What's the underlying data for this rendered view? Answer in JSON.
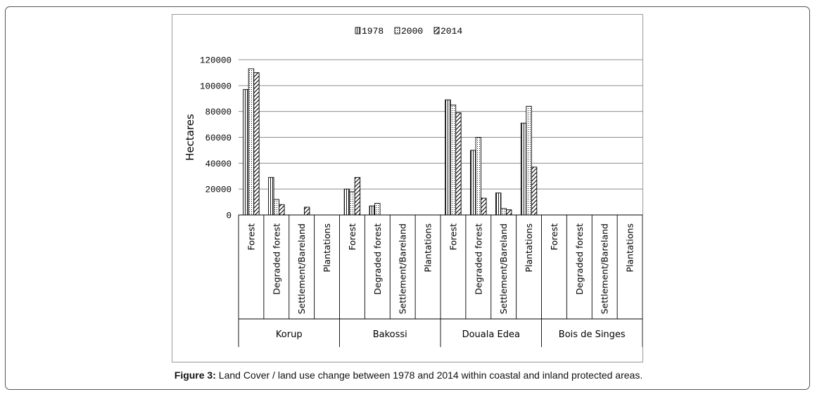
{
  "caption": {
    "label": "Figure 3:",
    "text": " Land Cover / land use change between 1978 and 2014 within coastal and inland protected areas."
  },
  "chart_data": {
    "type": "bar",
    "ylabel": "Hectares",
    "ylim": [
      0,
      120000
    ],
    "yticks": [
      "0",
      "20000",
      "40000",
      "60000",
      "80000",
      "100000",
      "120000"
    ],
    "grid": true,
    "legend_position": "top",
    "groups": [
      {
        "name": "Korup",
        "categories": [
          "Forest",
          "Degraded forest",
          "Settlement/Bareland",
          "Plantations"
        ]
      },
      {
        "name": "Bakossi",
        "categories": [
          "Forest",
          "Degraded forest",
          "Settlement/Bareland",
          "Plantations"
        ]
      },
      {
        "name": "Douala Edea",
        "categories": [
          "Forest",
          "Degraded forest",
          "Settlement/Bareland",
          "Plantations"
        ]
      },
      {
        "name": "Bois de Singes",
        "categories": [
          "Forest",
          "Degraded forest",
          "Settlement/Bareland",
          "Plantations"
        ]
      }
    ],
    "series": [
      {
        "name": "1978",
        "pattern": "vertical-lines",
        "values": [
          97000,
          29000,
          0,
          0,
          20000,
          7000,
          0,
          0,
          89000,
          50000,
          17000,
          71000,
          0,
          0,
          0,
          0
        ]
      },
      {
        "name": "2000",
        "pattern": "dots",
        "values": [
          113000,
          12000,
          0,
          0,
          18000,
          9000,
          0,
          0,
          85000,
          60000,
          5000,
          84000,
          0,
          0,
          0,
          0
        ]
      },
      {
        "name": "2014",
        "pattern": "diagonal-hatch",
        "values": [
          110000,
          8000,
          6000,
          0,
          29000,
          0,
          0,
          0,
          79000,
          13000,
          4000,
          37000,
          0,
          0,
          0,
          0
        ]
      }
    ]
  }
}
